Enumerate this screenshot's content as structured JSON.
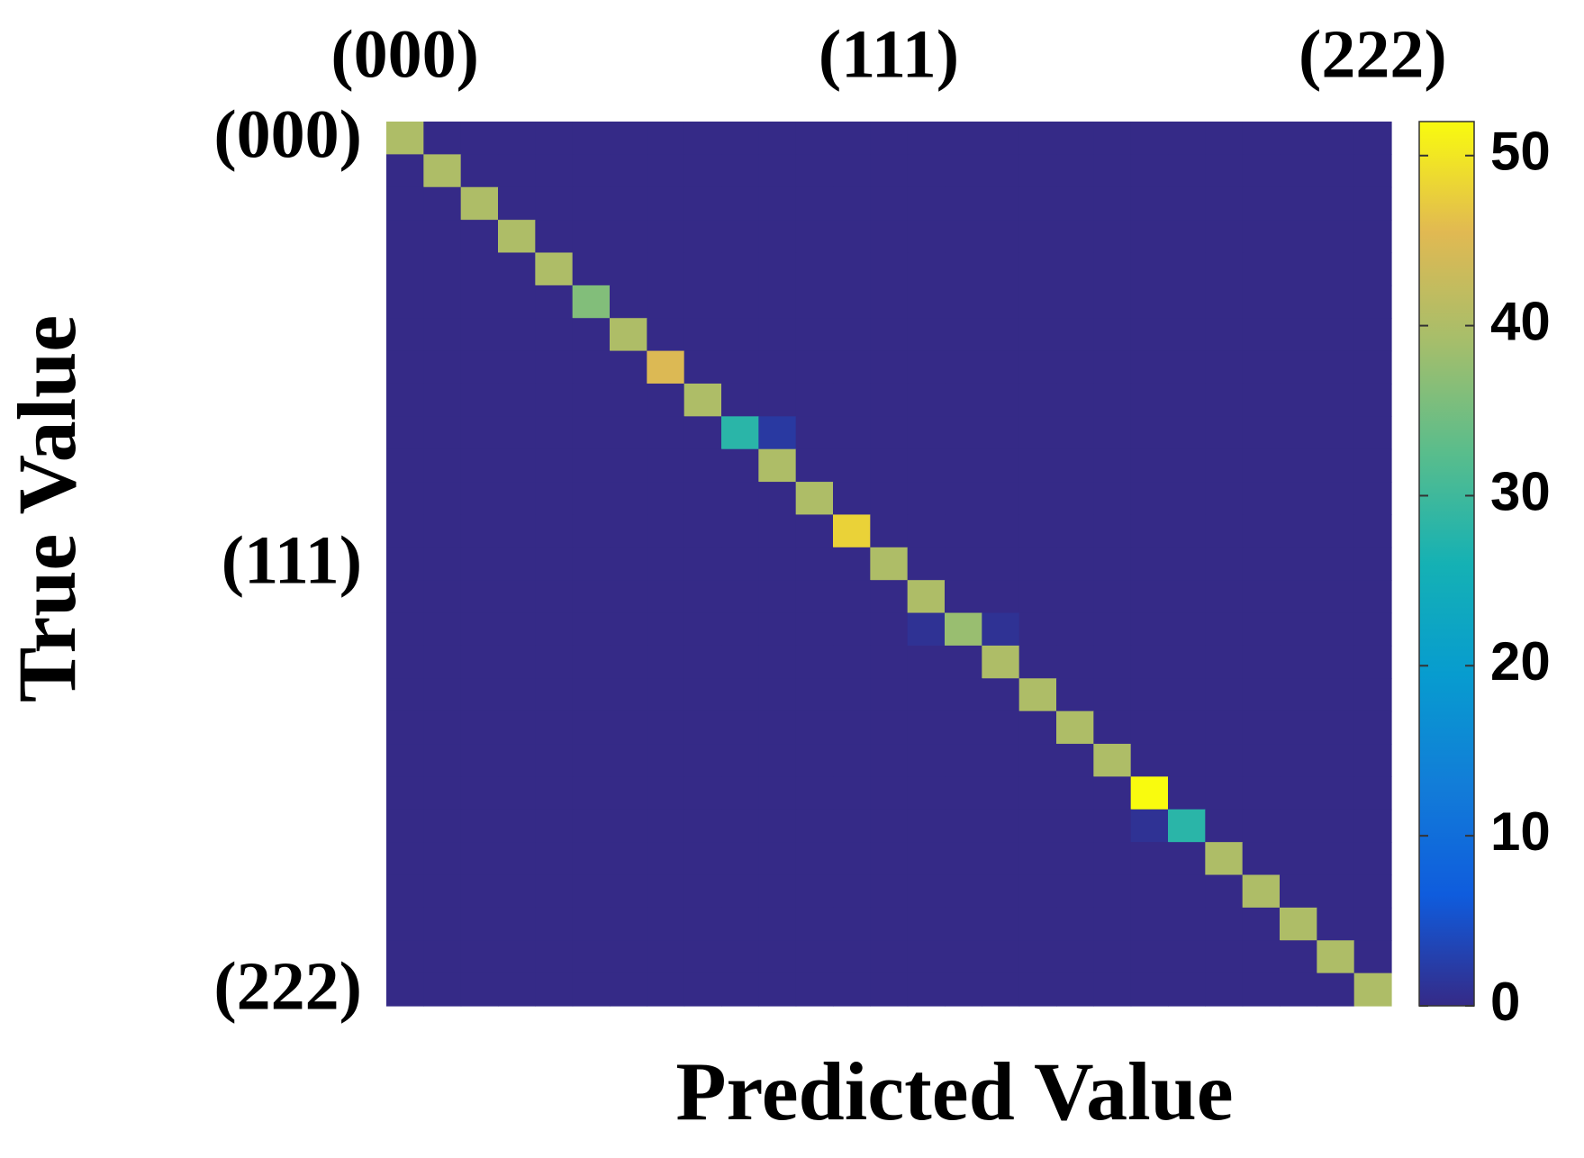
{
  "chart_data": {
    "type": "heatmap",
    "x_label": "Predicted Value",
    "y_label": "True Value",
    "x_categories": [
      "(000)",
      null,
      null,
      null,
      null,
      null,
      null,
      null,
      null,
      null,
      null,
      null,
      null,
      "(111)",
      null,
      null,
      null,
      null,
      null,
      null,
      null,
      null,
      null,
      null,
      null,
      null,
      "(222)"
    ],
    "y_categories": [
      "(000)",
      null,
      null,
      null,
      null,
      null,
      null,
      null,
      null,
      null,
      null,
      null,
      null,
      "(111)",
      null,
      null,
      null,
      null,
      null,
      null,
      null,
      null,
      null,
      null,
      null,
      null,
      "(222)"
    ],
    "colormap": "parula",
    "zlim": [
      0,
      52
    ],
    "zticks": [
      0,
      10,
      20,
      30,
      40,
      50
    ],
    "z": [
      [
        40,
        0,
        0,
        0,
        0,
        0,
        0,
        0,
        0,
        0,
        0,
        0,
        0,
        0,
        0,
        0,
        0,
        0,
        0,
        0,
        0,
        0,
        0,
        0,
        0,
        0,
        0
      ],
      [
        0,
        40,
        0,
        0,
        0,
        0,
        0,
        0,
        0,
        0,
        0,
        0,
        0,
        0,
        0,
        0,
        0,
        0,
        0,
        0,
        0,
        0,
        0,
        0,
        0,
        0,
        0
      ],
      [
        0,
        0,
        40,
        0,
        0,
        0,
        0,
        0,
        0,
        0,
        0,
        0,
        0,
        0,
        0,
        0,
        0,
        0,
        0,
        0,
        0,
        0,
        0,
        0,
        0,
        0,
        0
      ],
      [
        0,
        0,
        0,
        40,
        0,
        0,
        0,
        0,
        0,
        0,
        0,
        0,
        0,
        0,
        0,
        0,
        0,
        0,
        0,
        0,
        0,
        0,
        0,
        0,
        0,
        0,
        0
      ],
      [
        0,
        0,
        0,
        0,
        40,
        0,
        0,
        0,
        0,
        0,
        0,
        0,
        0,
        0,
        0,
        0,
        0,
        0,
        0,
        0,
        0,
        0,
        0,
        0,
        0,
        0,
        0
      ],
      [
        0,
        0,
        0,
        0,
        0,
        36,
        0,
        0,
        0,
        0,
        0,
        0,
        0,
        0,
        0,
        0,
        0,
        0,
        0,
        0,
        0,
        0,
        0,
        0,
        0,
        0,
        0
      ],
      [
        0,
        0,
        0,
        0,
        0,
        0,
        40,
        0,
        0,
        0,
        0,
        0,
        0,
        0,
        0,
        0,
        0,
        0,
        0,
        0,
        0,
        0,
        0,
        0,
        0,
        0,
        0
      ],
      [
        0,
        0,
        0,
        0,
        0,
        0,
        0,
        45,
        0,
        0,
        0,
        0,
        0,
        0,
        0,
        0,
        0,
        0,
        0,
        0,
        0,
        0,
        0,
        0,
        0,
        0,
        0
      ],
      [
        0,
        0,
        0,
        0,
        0,
        0,
        0,
        0,
        40,
        0,
        0,
        0,
        0,
        0,
        0,
        0,
        0,
        0,
        0,
        0,
        0,
        0,
        0,
        0,
        0,
        0,
        0
      ],
      [
        0,
        0,
        0,
        0,
        0,
        0,
        0,
        0,
        0,
        28,
        2,
        0,
        0,
        0,
        0,
        0,
        0,
        0,
        0,
        0,
        0,
        0,
        0,
        0,
        0,
        0,
        0
      ],
      [
        0,
        0,
        0,
        0,
        0,
        0,
        0,
        0,
        0,
        0,
        40,
        0,
        0,
        0,
        0,
        0,
        0,
        0,
        0,
        0,
        0,
        0,
        0,
        0,
        0,
        0,
        0
      ],
      [
        0,
        0,
        0,
        0,
        0,
        0,
        0,
        0,
        0,
        0,
        0,
        40,
        0,
        0,
        0,
        0,
        0,
        0,
        0,
        0,
        0,
        0,
        0,
        0,
        0,
        0,
        0
      ],
      [
        0,
        0,
        0,
        0,
        0,
        0,
        0,
        0,
        0,
        0,
        0,
        0,
        48,
        0,
        0,
        0,
        0,
        0,
        0,
        0,
        0,
        0,
        0,
        0,
        0,
        0,
        0
      ],
      [
        0,
        0,
        0,
        0,
        0,
        0,
        0,
        0,
        0,
        0,
        0,
        0,
        0,
        40,
        0,
        0,
        0,
        0,
        0,
        0,
        0,
        0,
        0,
        0,
        0,
        0,
        0
      ],
      [
        0,
        0,
        0,
        0,
        0,
        0,
        0,
        0,
        0,
        0,
        0,
        0,
        0,
        0,
        40,
        0,
        0,
        0,
        0,
        0,
        0,
        0,
        0,
        0,
        0,
        0,
        0
      ],
      [
        0,
        0,
        0,
        0,
        0,
        0,
        0,
        0,
        0,
        0,
        0,
        0,
        0,
        0,
        1,
        38,
        1,
        0,
        0,
        0,
        0,
        0,
        0,
        0,
        0,
        0,
        0
      ],
      [
        0,
        0,
        0,
        0,
        0,
        0,
        0,
        0,
        0,
        0,
        0,
        0,
        0,
        0,
        0,
        0,
        40,
        0,
        0,
        0,
        0,
        0,
        0,
        0,
        0,
        0,
        0
      ],
      [
        0,
        0,
        0,
        0,
        0,
        0,
        0,
        0,
        0,
        0,
        0,
        0,
        0,
        0,
        0,
        0,
        0,
        40,
        0,
        0,
        0,
        0,
        0,
        0,
        0,
        0,
        0
      ],
      [
        0,
        0,
        0,
        0,
        0,
        0,
        0,
        0,
        0,
        0,
        0,
        0,
        0,
        0,
        0,
        0,
        0,
        0,
        40,
        0,
        0,
        0,
        0,
        0,
        0,
        0,
        0
      ],
      [
        0,
        0,
        0,
        0,
        0,
        0,
        0,
        0,
        0,
        0,
        0,
        0,
        0,
        0,
        0,
        0,
        0,
        0,
        0,
        40,
        0,
        0,
        0,
        0,
        0,
        0,
        0
      ],
      [
        0,
        0,
        0,
        0,
        0,
        0,
        0,
        0,
        0,
        0,
        0,
        0,
        0,
        0,
        0,
        0,
        0,
        0,
        0,
        0,
        52,
        0,
        0,
        0,
        0,
        0,
        0
      ],
      [
        0,
        0,
        0,
        0,
        0,
        0,
        0,
        0,
        0,
        0,
        0,
        0,
        0,
        0,
        0,
        0,
        0,
        0,
        0,
        0,
        1,
        28,
        0,
        0,
        0,
        0,
        0
      ],
      [
        0,
        0,
        0,
        0,
        0,
        0,
        0,
        0,
        0,
        0,
        0,
        0,
        0,
        0,
        0,
        0,
        0,
        0,
        0,
        0,
        0,
        0,
        40,
        0,
        0,
        0,
        0
      ],
      [
        0,
        0,
        0,
        0,
        0,
        0,
        0,
        0,
        0,
        0,
        0,
        0,
        0,
        0,
        0,
        0,
        0,
        0,
        0,
        0,
        0,
        0,
        0,
        40,
        0,
        0,
        0
      ],
      [
        0,
        0,
        0,
        0,
        0,
        0,
        0,
        0,
        0,
        0,
        0,
        0,
        0,
        0,
        0,
        0,
        0,
        0,
        0,
        0,
        0,
        0,
        0,
        0,
        40,
        0,
        0
      ],
      [
        0,
        0,
        0,
        0,
        0,
        0,
        0,
        0,
        0,
        0,
        0,
        0,
        0,
        0,
        0,
        0,
        0,
        0,
        0,
        0,
        0,
        0,
        0,
        0,
        0,
        40,
        0
      ],
      [
        0,
        0,
        0,
        0,
        0,
        0,
        0,
        0,
        0,
        0,
        0,
        0,
        0,
        0,
        0,
        0,
        0,
        0,
        0,
        0,
        0,
        0,
        0,
        0,
        0,
        0,
        40
      ]
    ]
  }
}
